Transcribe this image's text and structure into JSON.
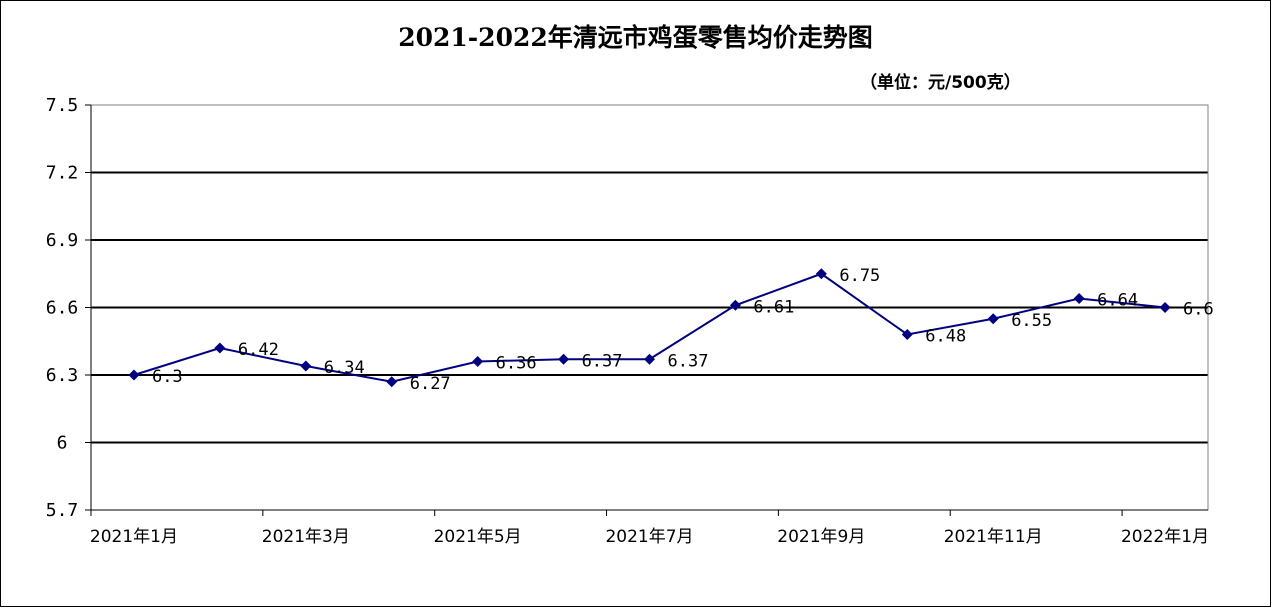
{
  "chart_data": {
    "type": "line",
    "title": "2021-2022年清远市鸡蛋零售均价走势图",
    "unit_label": "（单位：元/500克）",
    "ylim": [
      5.7,
      7.5
    ],
    "yticks": [
      "7.5",
      "7.2",
      "6.9",
      "6.6",
      "6.3",
      "6",
      "5.7"
    ],
    "ytick_values": [
      7.5,
      7.2,
      6.9,
      6.6,
      6.3,
      6.0,
      5.7
    ],
    "grid": true,
    "x_tick_labels": [
      "2021年1月",
      "2021年3月",
      "2021年5月",
      "2021年7月",
      "2021年9月",
      "2021年11月",
      "2022年1月"
    ],
    "x_tick_month_index": [
      0,
      2,
      4,
      6,
      8,
      10,
      12
    ],
    "series": [
      {
        "values": [
          6.3,
          6.42,
          6.34,
          6.27,
          6.36,
          6.37,
          6.37,
          6.61,
          6.75,
          6.48,
          6.55,
          6.64,
          6.6
        ],
        "labels": [
          "6.3",
          "6.42",
          "6.34",
          "6.27",
          "6.36",
          "6.37",
          "6.37",
          "6.61",
          "6.75",
          "6.48",
          "6.55",
          "6.64",
          "6.6"
        ],
        "color": "#000080"
      }
    ]
  }
}
